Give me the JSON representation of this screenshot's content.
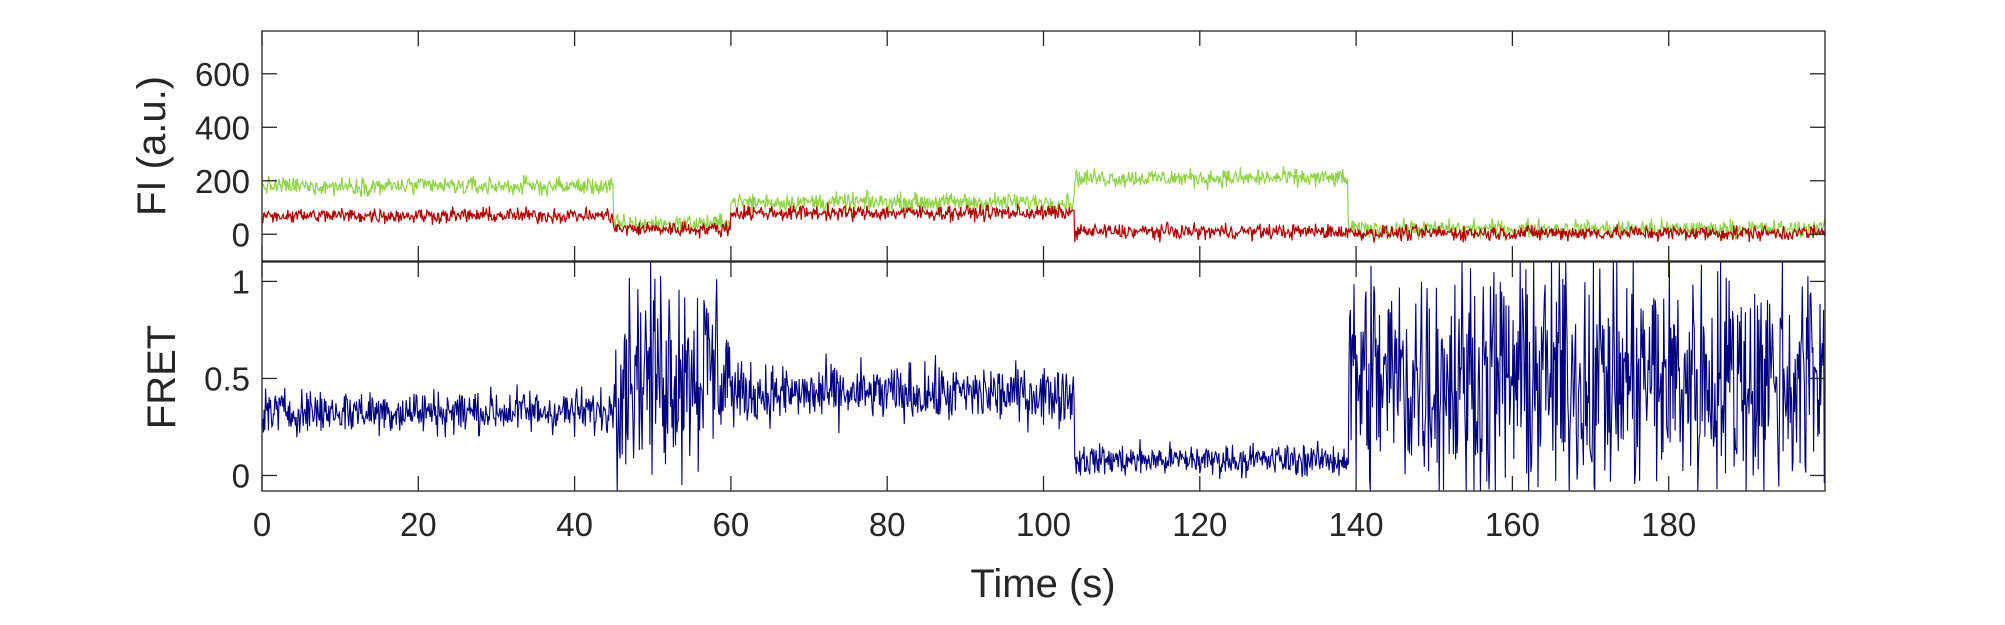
{
  "chart_data": [
    {
      "type": "line",
      "panel": "top",
      "ylabel": "FI (a.u.)",
      "xlim": [
        0,
        200
      ],
      "ylim": [
        -100,
        760
      ],
      "yticks": [
        0,
        200,
        400,
        600
      ],
      "ytick_labels": [
        "0",
        "200",
        "400",
        "600"
      ],
      "grid": false,
      "box": true,
      "series": [
        {
          "color": "#8fd444",
          "style": "noisy-step",
          "noise_amplitude": 50,
          "segments": [
            {
              "x0": 0,
              "x1": 45,
              "y": 180
            },
            {
              "x0": 45,
              "x1": 60,
              "y": 40
            },
            {
              "x0": 60,
              "x1": 104,
              "y": 120
            },
            {
              "x0": 104,
              "x1": 139,
              "y": 210
            },
            {
              "x0": 139,
              "x1": 200,
              "y": 20
            }
          ]
        },
        {
          "color": "#b00000",
          "style": "noisy-step",
          "noise_amplitude": 42,
          "segments": [
            {
              "x0": 0,
              "x1": 45,
              "y": 70
            },
            {
              "x0": 45,
              "x1": 60,
              "y": 20
            },
            {
              "x0": 60,
              "x1": 104,
              "y": 80
            },
            {
              "x0": 104,
              "x1": 139,
              "y": 10
            },
            {
              "x0": 139,
              "x1": 200,
              "y": 5
            }
          ]
        }
      ]
    },
    {
      "type": "line",
      "panel": "bottom",
      "xlabel": "Time (s)",
      "ylabel": "FRET",
      "xlim": [
        0,
        200
      ],
      "ylim": [
        -0.08,
        1.1
      ],
      "xticks": [
        0,
        20,
        40,
        60,
        80,
        100,
        120,
        140,
        160,
        180
      ],
      "xtick_labels": [
        "0",
        "20",
        "40",
        "60",
        "80",
        "100",
        "120",
        "140",
        "160",
        "180"
      ],
      "yticks": [
        0,
        0.5,
        1
      ],
      "ytick_labels": [
        "0",
        "0.5",
        "1"
      ],
      "grid": false,
      "box": true,
      "series": [
        {
          "color": "#000080",
          "style": "noisy-step",
          "clip": [
            -0.08,
            1.1
          ],
          "segments": [
            {
              "x0": 0,
              "x1": 45,
              "y": 0.33,
              "noise": 0.17
            },
            {
              "x0": 45,
              "x1": 60,
              "y": 0.55,
              "noise": 0.75
            },
            {
              "x0": 60,
              "x1": 104,
              "y": 0.42,
              "noise": 0.22
            },
            {
              "x0": 104,
              "x1": 139,
              "y": 0.08,
              "noise": 0.12
            },
            {
              "x0": 139,
              "x1": 200,
              "y": 0.5,
              "noise": 0.9
            }
          ]
        }
      ]
    }
  ]
}
